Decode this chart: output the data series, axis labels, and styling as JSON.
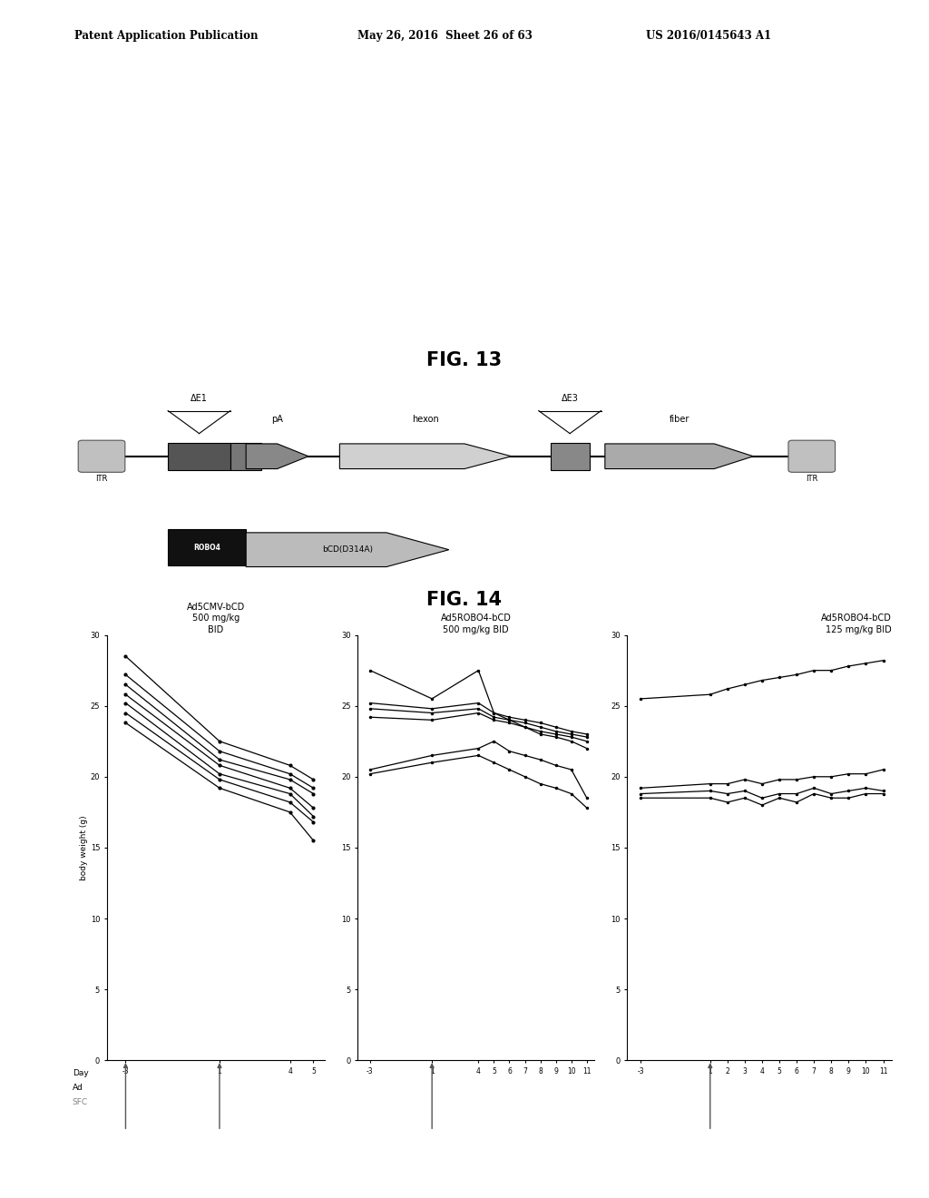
{
  "header_left": "Patent Application Publication",
  "header_mid": "May 26, 2016  Sheet 26 of 63",
  "header_right": "US 2016/0145643 A1",
  "fig13_label": "FIG. 13",
  "fig14_label": "FIG. 14",
  "panel1_title": "Ad5CMV-bCD\n500 mg/kg\nBID",
  "panel2_title": "Ad5ROBO4-bCD\n500 mg/kg BID",
  "panel3_title": "Ad5ROBO4-bCD\n125 mg/kg BID",
  "ylabel": "body weight (g)",
  "panel1_xticks_labels": [
    "-3",
    "1",
    "4",
    "5"
  ],
  "panel1_xticks_vals": [
    -3,
    1,
    4,
    5
  ],
  "panel2_xticks_labels": [
    "-3",
    "1",
    "4",
    "5",
    "6",
    "7",
    "8",
    "9",
    "10",
    "11"
  ],
  "panel2_xticks_vals": [
    -3,
    1,
    4,
    5,
    6,
    7,
    8,
    9,
    10,
    11
  ],
  "panel3_xticks_labels": [
    "-3",
    "1",
    "2",
    "3",
    "4",
    "5",
    "6",
    "7",
    "8",
    "9",
    "10",
    "11"
  ],
  "panel3_xticks_vals": [
    -3,
    1,
    2,
    3,
    4,
    5,
    6,
    7,
    8,
    9,
    10,
    11
  ],
  "panel1_lines": [
    [
      -3,
      1,
      4,
      5
    ],
    [
      28.5,
      22.5,
      20.8,
      19.8
    ],
    [
      27.2,
      21.8,
      20.2,
      19.2
    ],
    [
      26.5,
      21.2,
      19.8,
      18.8
    ],
    [
      25.8,
      20.8,
      19.2,
      17.8
    ],
    [
      25.2,
      20.2,
      18.8,
      17.2
    ],
    [
      24.5,
      19.8,
      18.2,
      16.8
    ],
    [
      23.8,
      19.2,
      17.5,
      15.5
    ]
  ],
  "panel2_xvals": [
    -3,
    1,
    4,
    5,
    6,
    7,
    8,
    9,
    10,
    11
  ],
  "panel2_lines": [
    [
      27.5,
      25.5,
      27.5,
      24.5,
      24.0,
      23.5,
      23.0,
      22.8,
      22.5,
      22.0
    ],
    [
      25.2,
      24.8,
      25.2,
      24.5,
      24.2,
      24.0,
      23.8,
      23.5,
      23.2,
      23.0
    ],
    [
      24.8,
      24.5,
      24.8,
      24.2,
      24.0,
      23.8,
      23.5,
      23.2,
      23.0,
      22.8
    ],
    [
      24.2,
      24.0,
      24.5,
      24.0,
      23.8,
      23.5,
      23.2,
      23.0,
      22.8,
      22.5
    ],
    [
      20.5,
      21.5,
      22.0,
      22.5,
      21.8,
      21.5,
      21.2,
      20.8,
      20.5,
      18.5
    ],
    [
      20.2,
      21.0,
      21.5,
      21.0,
      20.5,
      20.0,
      19.5,
      19.2,
      18.8,
      17.8
    ]
  ],
  "panel3_xvals": [
    -3,
    1,
    2,
    3,
    4,
    5,
    6,
    7,
    8,
    9,
    10,
    11
  ],
  "panel3_lines": [
    [
      25.5,
      25.8,
      26.2,
      26.5,
      26.8,
      27.0,
      27.2,
      27.5,
      27.5,
      27.8,
      28.0,
      28.2
    ],
    [
      19.2,
      19.5,
      19.5,
      19.8,
      19.5,
      19.8,
      19.8,
      20.0,
      20.0,
      20.2,
      20.2,
      20.5
    ],
    [
      18.8,
      19.0,
      18.8,
      19.0,
      18.5,
      18.8,
      18.8,
      19.2,
      18.8,
      19.0,
      19.2,
      19.0
    ],
    [
      18.5,
      18.5,
      18.2,
      18.5,
      18.0,
      18.5,
      18.2,
      18.8,
      18.5,
      18.5,
      18.8,
      18.8
    ]
  ],
  "background_color": "#ffffff"
}
